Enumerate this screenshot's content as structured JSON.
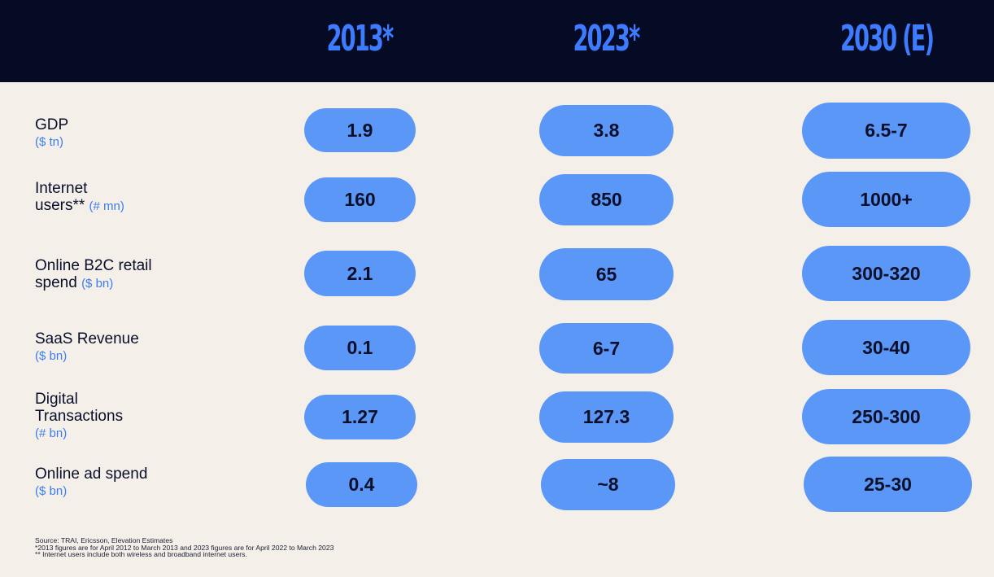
{
  "chart_data": {
    "type": "table",
    "columns": [
      "2013*",
      "2023*",
      "2030 (E)"
    ],
    "rows": [
      {
        "label_lines": [
          "GDP"
        ],
        "unit": "($ tn)",
        "unit_inline": false,
        "values": [
          "1.9",
          "3.8",
          "6.5-7"
        ]
      },
      {
        "label_lines": [
          "Internet",
          "users**"
        ],
        "unit": "(# mn)",
        "unit_inline": true,
        "values": [
          "160",
          "850",
          "1000+"
        ]
      },
      {
        "label_lines": [
          "Online B2C retail",
          "spend"
        ],
        "unit": "($ bn)",
        "unit_inline": true,
        "values": [
          "2.1",
          "65",
          "300-320"
        ]
      },
      {
        "label_lines": [
          "SaaS Revenue"
        ],
        "unit": "($ bn)",
        "unit_inline": false,
        "values": [
          "0.1",
          "6-7",
          "30-40"
        ]
      },
      {
        "label_lines": [
          "Digital",
          "Transactions"
        ],
        "unit": "(# bn)",
        "unit_inline": false,
        "values": [
          "1.27",
          "127.3",
          "250-300"
        ]
      },
      {
        "label_lines": [
          "Online ad spend"
        ],
        "unit": "($ bn)",
        "unit_inline": false,
        "values": [
          "0.4",
          "~8",
          "25-30"
        ]
      }
    ]
  },
  "footnotes": [
    "Source: TRAI, Ericsson, Elevation Estimates",
    "*2013 figures are for April 2012 to March 2013 and 2023 figures are for April 2022 to March 2023",
    "** Internet users include both wireless and broadband internet users."
  ],
  "colors": {
    "header_background": "#050a25",
    "page_background": "#f4efe9",
    "year_text": "#3d7bff",
    "pill_fill": "#5b97f7",
    "unit_text": "#3b7dee",
    "body_text": "#0a0f2a"
  }
}
